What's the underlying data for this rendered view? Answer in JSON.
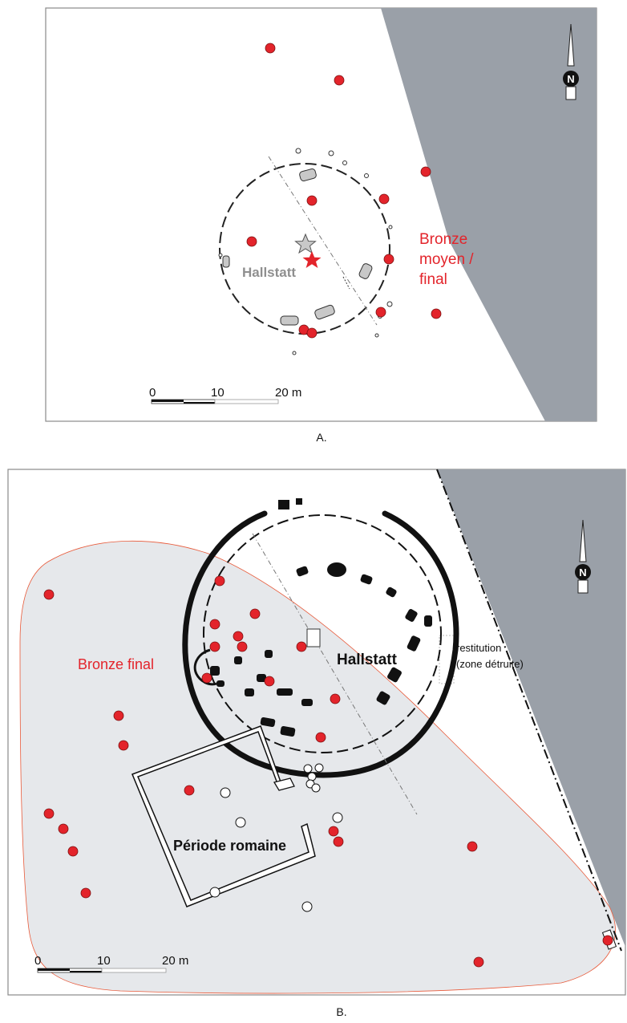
{
  "panel_a": {
    "label": "A.",
    "hallstatt_label": "Hallstatt",
    "bronze_label_lines": [
      "Bronze",
      "moyen /",
      "final"
    ],
    "north_letter": "N",
    "scale_labels": [
      "0",
      "10",
      "20 m"
    ],
    "colors": {
      "red_dot": "#e3242b",
      "destroyed_zone": "#9aa0a8",
      "feature_gray": "#c8c8c8",
      "label_gray": "#8f8f8f",
      "label_red": "#e3242b"
    }
  },
  "panel_b": {
    "label": "B.",
    "hallstatt_label": "Hallstatt",
    "bronze_label": "Bronze final",
    "roman_label": "Période romaine",
    "restitution_lines": [
      "restitution",
      "(zone détruite)"
    ],
    "north_letter": "N",
    "scale_labels": [
      "0",
      "10",
      "20 m"
    ],
    "colors": {
      "red_dot": "#e3242b",
      "destroyed_zone": "#9aa0a8",
      "bronze_zone": "#e6e8eb",
      "bronze_outline": "#e85a3a",
      "label_red": "#e3242b"
    }
  }
}
